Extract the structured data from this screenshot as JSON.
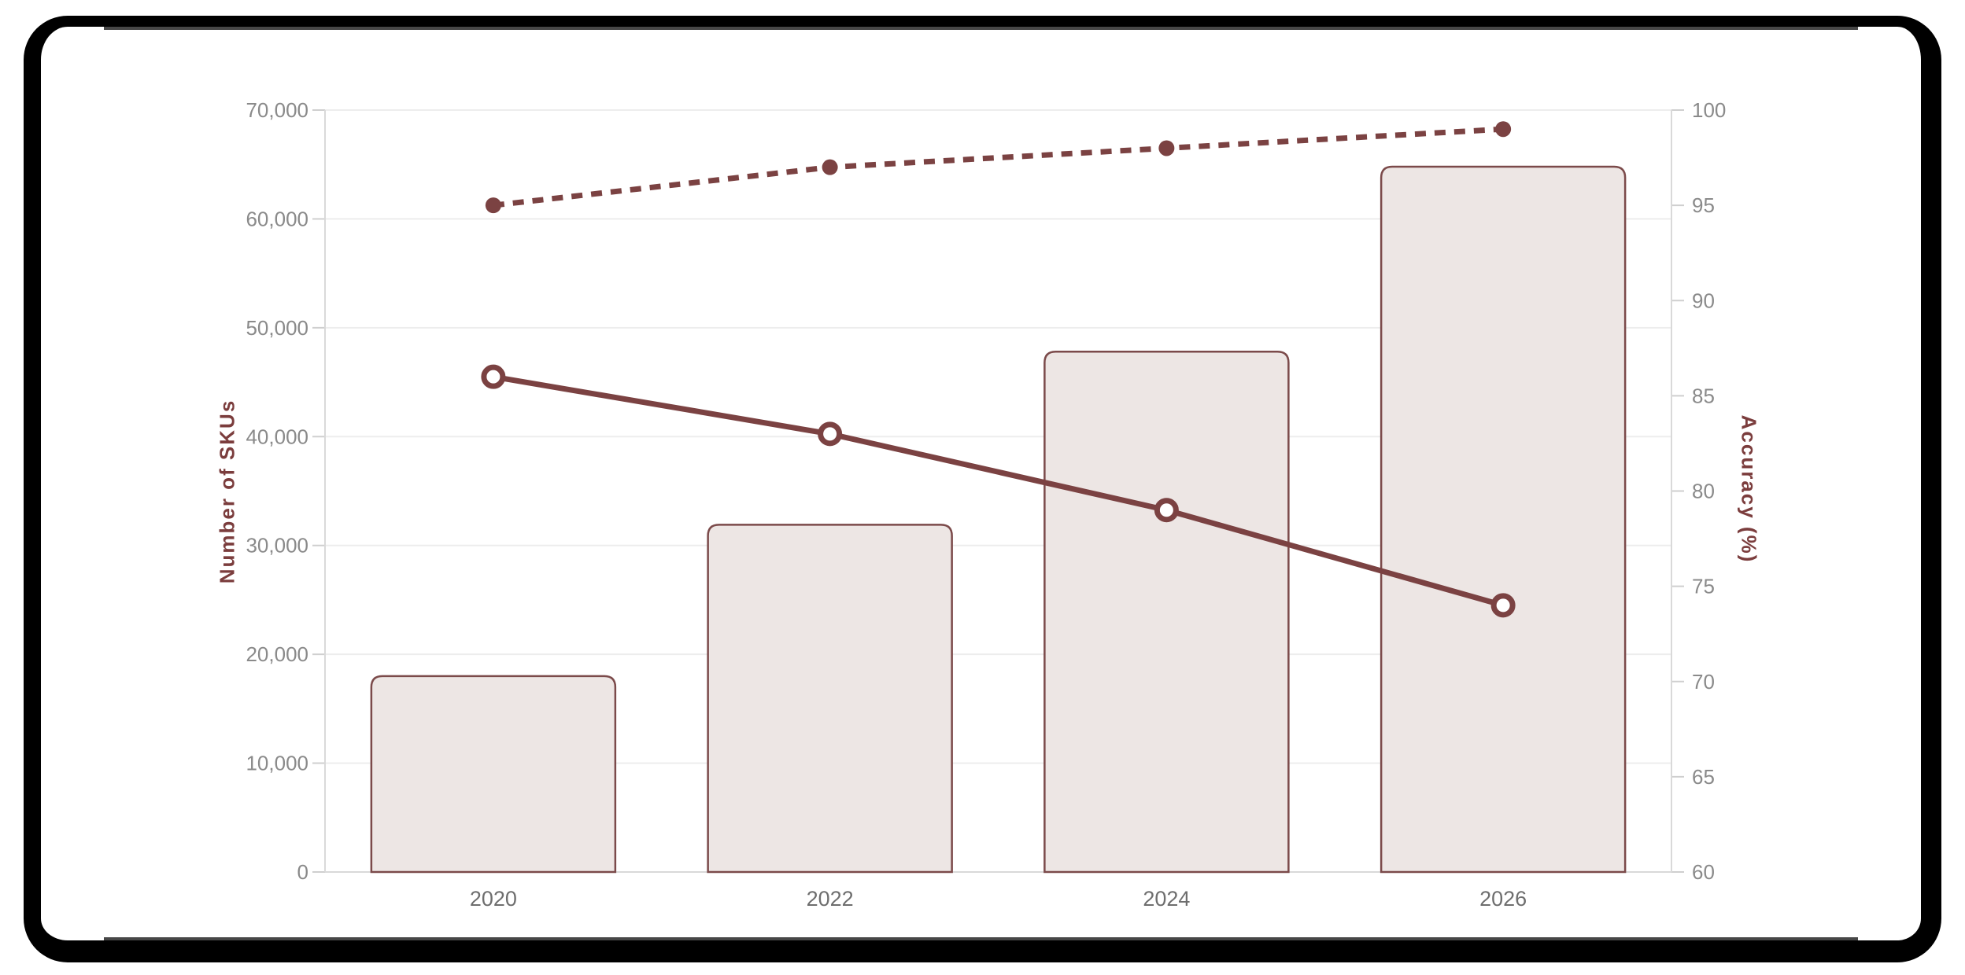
{
  "colors": {
    "accent": "#7B4242",
    "axis_title": "#7B3D3D",
    "bar_fill": "#EDE6E4",
    "bar_stroke": "#7B4A4A",
    "grid": "#EDEDED",
    "axis_line": "#D9D9D9",
    "tick": "#CFCFCF",
    "tick_label": "#8A8A8A",
    "x_label": "#6E6E6E",
    "frame": "#000000"
  },
  "chart_data": {
    "type": "bar+line combo, dual axis",
    "title": "",
    "categories": [
      "2020",
      "2022",
      "2024",
      "2026"
    ],
    "series": [
      {
        "name": "sku-bars",
        "type": "bar",
        "axis": "left",
        "values": [
          18000,
          31900,
          47800,
          64800
        ]
      },
      {
        "name": "accuracy-dashed",
        "type": "line",
        "line_style": "dashed",
        "marker": "filled-circle",
        "axis": "right",
        "values": [
          95,
          97,
          98,
          99
        ]
      },
      {
        "name": "accuracy-solid",
        "type": "line",
        "line_style": "solid",
        "marker": "open-circle",
        "axis": "right",
        "values": [
          86,
          83,
          79,
          74
        ]
      }
    ],
    "left_axis": {
      "label": "Number of SKUs",
      "min": 0,
      "max": 70000,
      "step": 10000,
      "tick_labels": [
        "0",
        "10,000",
        "20,000",
        "30,000",
        "40,000",
        "50,000",
        "60,000",
        "70,000"
      ]
    },
    "right_axis": {
      "label": "Accuracy (%)",
      "min": 60,
      "max": 100,
      "step": 5,
      "tick_labels": [
        "60",
        "65",
        "70",
        "75",
        "80",
        "85",
        "90",
        "95",
        "100"
      ]
    },
    "x_axis": {
      "tick_labels": [
        "2020",
        "2022",
        "2024",
        "2026"
      ]
    },
    "grid": "horizontal only",
    "legend": "none"
  }
}
